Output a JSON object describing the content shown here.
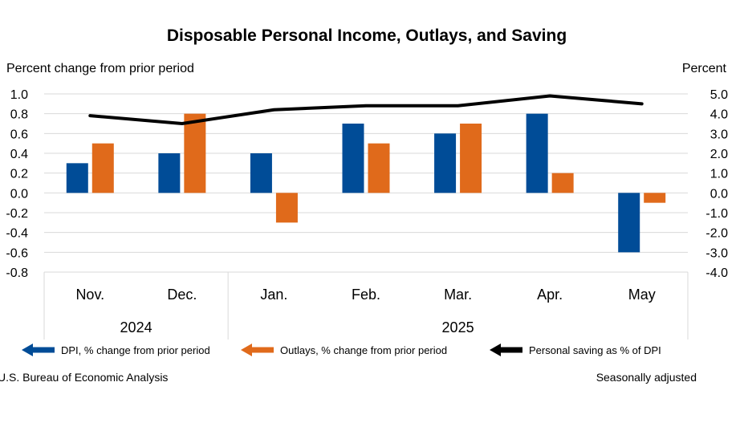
{
  "chart_data": {
    "type": "bar",
    "title": "Disposable Personal Income, Outlays, and Saving",
    "ylabel_left": "Percent change from prior period",
    "ylabel_right": "Percent",
    "categories": [
      "Nov.",
      "Dec.",
      "Jan.",
      "Feb.",
      "Mar.",
      "Apr.",
      "May"
    ],
    "years": [
      {
        "label": "2024",
        "categories": [
          "Nov.",
          "Dec."
        ]
      },
      {
        "label": "2025",
        "categories": [
          "Jan.",
          "Feb.",
          "Mar.",
          "Apr.",
          "May"
        ]
      }
    ],
    "ylim_left": [
      -0.8,
      1.0
    ],
    "yticks_left": [
      "1.0",
      "0.8",
      "0.6",
      "0.4",
      "0.2",
      "0.0",
      "-0.2",
      "-0.4",
      "-0.6",
      "-0.8"
    ],
    "ylim_right": [
      -4.0,
      5.0
    ],
    "yticks_right": [
      "5.0",
      "4.0",
      "3.0",
      "2.0",
      "1.0",
      "0.0",
      "-1.0",
      "-2.0",
      "-3.0",
      "-4.0"
    ],
    "series": [
      {
        "name": "DPI, % change from prior period",
        "type": "bar",
        "axis": "left",
        "color": "#004C97",
        "values": [
          0.3,
          0.4,
          0.4,
          0.7,
          0.6,
          0.8,
          -0.6
        ]
      },
      {
        "name": "Outlays, % change from prior period",
        "type": "bar",
        "axis": "left",
        "color": "#E06A1B",
        "values": [
          0.5,
          0.8,
          -0.3,
          0.5,
          0.7,
          0.2,
          -0.1
        ]
      },
      {
        "name": "Personal saving as % of DPI",
        "type": "line",
        "axis": "right",
        "color": "#000000",
        "values": [
          3.9,
          3.5,
          4.2,
          4.4,
          4.4,
          4.9,
          4.5
        ]
      }
    ],
    "grid": true,
    "legend": "bottom"
  },
  "footer": {
    "source": "U.S. Bureau of Economic Analysis",
    "note": "Seasonally adjusted"
  }
}
